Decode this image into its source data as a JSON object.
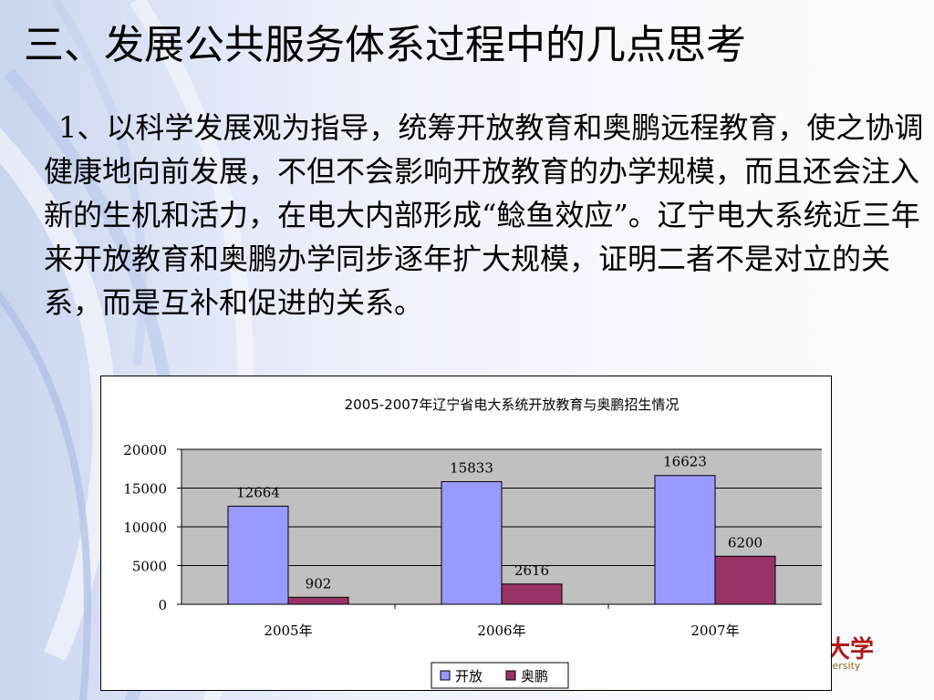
{
  "slide": {
    "title": "三、发展公共服务体系过程中的几点思考",
    "body": "1、以科学发展观为指导，统筹开放教育和奥鹏远程教育，使之协调健康地向前发展，不但不会影响开放教育的办学规模，而且还会注入新的生机和活力，在电大内部形成“鲶鱼效应”。辽宁电大系统近三年来开放教育和奥鹏办学同步逐年扩大规模，证明二者不是对立的关系，而是互补和促进的关系。"
  },
  "logo": {
    "text": "大学",
    "subtext": "versity"
  },
  "chart_data": {
    "type": "bar",
    "title": "2005-2007年辽宁省电大系统开放教育与奥鹏招生情况",
    "categories": [
      "2005年",
      "2006年",
      "2007年"
    ],
    "series": [
      {
        "name": "开放",
        "values": [
          12664,
          15833,
          16623
        ],
        "color": "#9999ff"
      },
      {
        "name": "奥鹏",
        "values": [
          902,
          2616,
          6200
        ],
        "color": "#993366"
      }
    ],
    "ylim": [
      0,
      20000
    ],
    "yticks": [
      0,
      5000,
      10000,
      15000,
      20000
    ],
    "grid": true,
    "plot_background": "#c0c0c0",
    "legend": "bottom-center"
  }
}
